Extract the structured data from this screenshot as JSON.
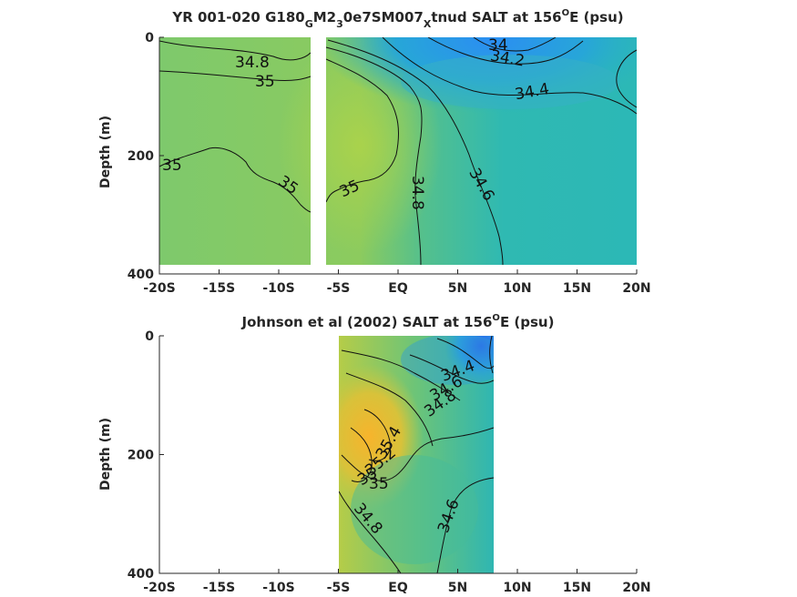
{
  "chart_data": [
    {
      "type": "contour",
      "title_parts": [
        "YR 001-020 G180",
        "G",
        "M2",
        "3",
        "0e7SM007",
        "X",
        "tnud SALT at 156",
        "O",
        "E (psu)"
      ],
      "ylabel": "Depth (m)",
      "xlim": [
        -20,
        20
      ],
      "ylim": [
        0,
        400
      ],
      "x_ticks": [
        -20,
        -15,
        -10,
        -5,
        0,
        5,
        10,
        15,
        20
      ],
      "x_tick_labels": [
        "-20S",
        "-15S",
        "-10S",
        "-5S",
        "EQ",
        "5N",
        "10N",
        "15N",
        "20N"
      ],
      "y_ticks": [
        0,
        200,
        400
      ],
      "y_tick_labels": [
        "0",
        "200",
        "400"
      ],
      "data_extent": {
        "x": [
          -20,
          20
        ],
        "y": [
          0,
          388
        ]
      },
      "gap_x": [
        -7.2,
        -6.2
      ],
      "contour_labels": [
        "34.8",
        "35",
        "35",
        "35",
        "35",
        "34.8",
        "34.6",
        "34.4",
        "34.2",
        "34"
      ],
      "colors": [
        "#7ec86c",
        "#a6d050",
        "#32b8b0",
        "#2f8cf0"
      ]
    },
    {
      "type": "contour",
      "title_parts": [
        "Johnson et al (2002) SALT at 156",
        "O",
        "E (psu)"
      ],
      "ylabel": "Depth (m)",
      "xlim": [
        -20,
        20
      ],
      "ylim": [
        0,
        400
      ],
      "x_ticks": [
        -20,
        -15,
        -10,
        -5,
        0,
        5,
        10,
        15,
        20
      ],
      "x_tick_labels": [
        "-20S",
        "-15S",
        "-10S",
        "-5S",
        "EQ",
        "5N",
        "10N",
        "15N",
        "20N"
      ],
      "y_ticks": [
        0,
        200,
        400
      ],
      "y_tick_labels": [
        "0",
        "200",
        "400"
      ],
      "data_extent": {
        "x": [
          -5,
          8
        ],
        "y": [
          0,
          400
        ]
      },
      "contour_labels": [
        "34.4",
        "34.6",
        "34.8",
        "35.4",
        "35.2",
        "35",
        "35",
        "34.8",
        "34.6"
      ],
      "colors": [
        "#f7b830",
        "#b8cc48",
        "#3ab8a8",
        "#2f6ef0"
      ]
    }
  ]
}
